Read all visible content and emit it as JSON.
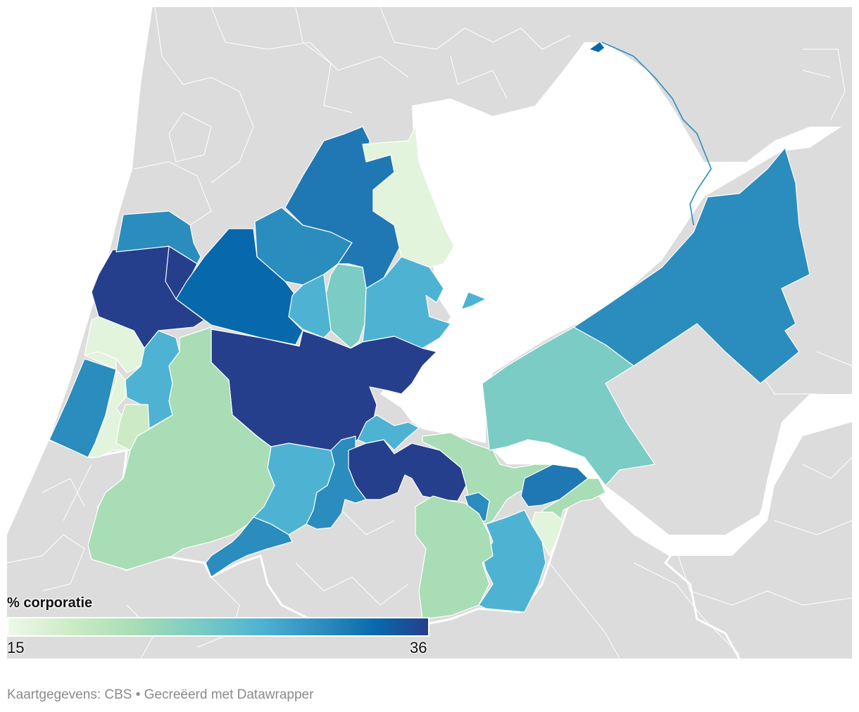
{
  "legend": {
    "title": "% corporatie",
    "min": "15",
    "max": "36"
  },
  "credit": "Kaartgegevens: CBS • Gecreëerd met Datawrapper",
  "colors": {
    "land_background": "#dcdcdc",
    "water": "#ffffff",
    "scale": [
      "#edf8e9",
      "#ccebc5",
      "#a8ddb5",
      "#7bccc4",
      "#4eb3d3",
      "#2b8cbe",
      "#0868ac",
      "#253f8c"
    ]
  }
}
